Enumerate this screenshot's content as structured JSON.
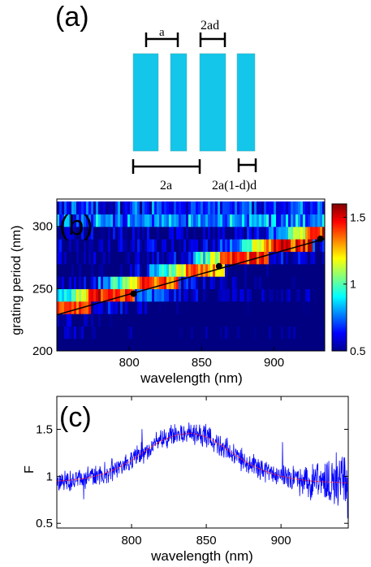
{
  "panel_a": {
    "label": "(a)",
    "dim_a": "a",
    "dim_2ad": "2ad",
    "dim_2a": "2a",
    "dim_2a1dd": "2a(1-d)d",
    "bar_color": "#13c6ea"
  },
  "chart_data": [
    {
      "type": "heatmap",
      "panel_label": "(b)",
      "xlabel": "wavelength (nm)",
      "ylabel": "grating period (nm)",
      "xlim": [
        750,
        935
      ],
      "ylim": [
        200,
        322
      ],
      "xticks": [
        800,
        850,
        900
      ],
      "yticks": [
        200,
        250,
        300
      ],
      "colorbar": {
        "range": [
          0.5,
          1.6
        ],
        "ticks": [
          0.5,
          1,
          1.5
        ],
        "colormap": "jet"
      },
      "grating_periods": [
        205,
        215,
        225,
        235,
        245,
        255,
        265,
        275,
        285,
        295,
        305,
        315
      ],
      "line": {
        "x": [
          750,
          935
        ],
        "y": [
          229,
          290
        ],
        "points": [
          {
            "x": 803,
            "y": 246
          },
          {
            "x": 862,
            "y": 268
          },
          {
            "x": 932,
            "y": 290
          }
        ],
        "color": "#000000"
      }
    },
    {
      "type": "line",
      "panel_label": "(c)",
      "xlabel": "wavelength (nm)",
      "ylabel": "F",
      "xlim": [
        750,
        945
      ],
      "ylim": [
        0.45,
        1.85
      ],
      "xticks": [
        800,
        850,
        900
      ],
      "yticks": [
        0.5,
        1,
        1.5
      ],
      "series": [
        {
          "style": "noisy data",
          "color": "#0000ff",
          "x": [
            750,
            760,
            770,
            780,
            790,
            800,
            810,
            820,
            830,
            840,
            850,
            860,
            870,
            880,
            890,
            900,
            910,
            920,
            930,
            945
          ],
          "y": [
            0.95,
            0.96,
            0.98,
            1.02,
            1.08,
            1.17,
            1.28,
            1.38,
            1.44,
            1.46,
            1.42,
            1.33,
            1.22,
            1.12,
            1.05,
            1.0,
            0.97,
            0.95,
            0.94,
            0.93
          ]
        },
        {
          "style": "fit",
          "color": "#ff3030",
          "x": [
            750,
            760,
            770,
            780,
            790,
            800,
            810,
            820,
            830,
            840,
            850,
            860,
            870,
            880,
            890,
            900,
            910,
            920,
            930,
            945
          ],
          "y": [
            0.95,
            0.96,
            0.98,
            1.02,
            1.08,
            1.17,
            1.28,
            1.38,
            1.44,
            1.46,
            1.42,
            1.33,
            1.22,
            1.12,
            1.05,
            1.0,
            0.97,
            0.95,
            0.94,
            0.93
          ]
        }
      ]
    }
  ]
}
